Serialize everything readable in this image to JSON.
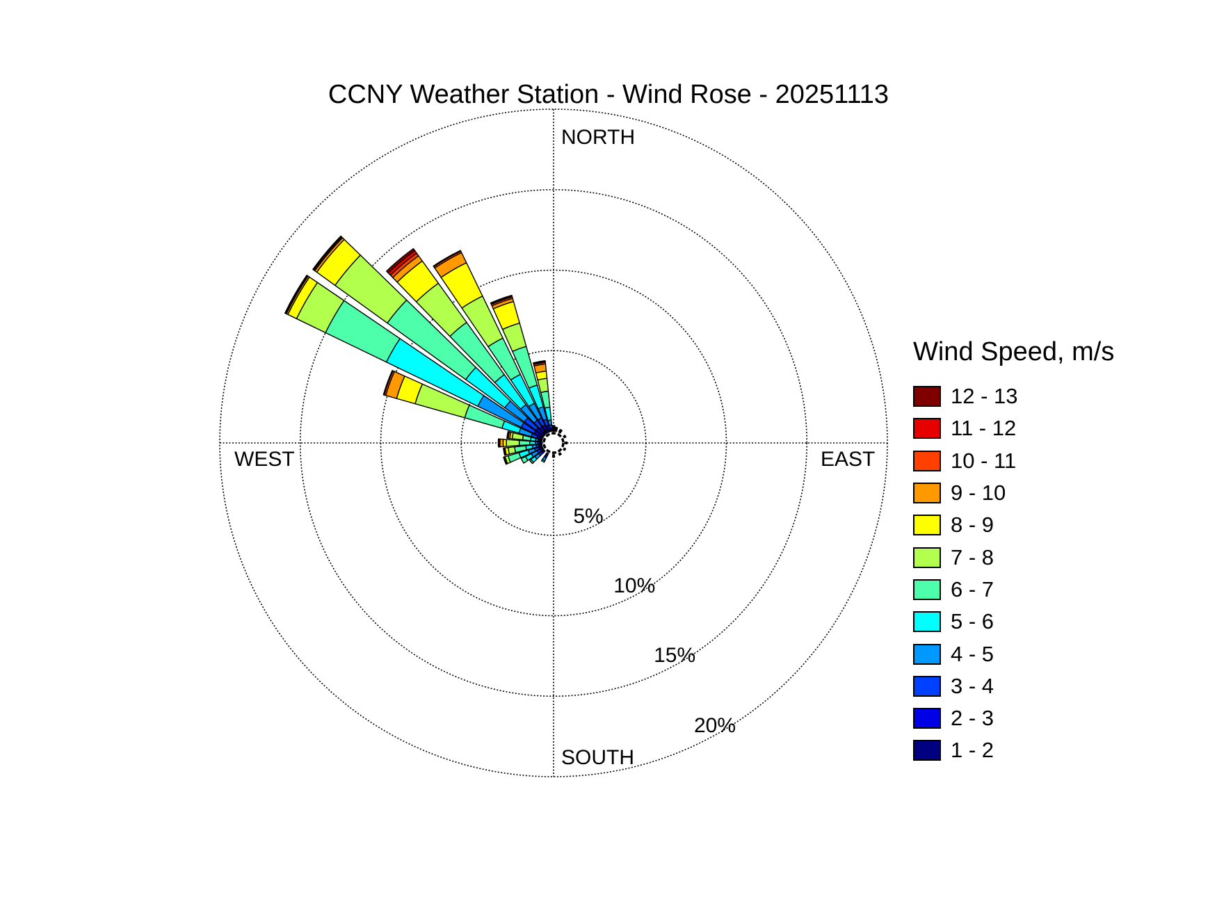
{
  "chart_data": {
    "type": "wind-rose",
    "title": "CCNY Weather Station - Wind Rose - 20251113",
    "direction_labels": {
      "north": "NORTH",
      "south": "SOUTH",
      "west": "WEST",
      "east": "EAST"
    },
    "radial_ticks": [
      5,
      10,
      15,
      20
    ],
    "radial_tick_labels": [
      "5%",
      "10%",
      "15%",
      "20%"
    ],
    "rmax": 20,
    "grid": true,
    "legend_position": "right",
    "legend_title": "Wind Speed, m/s",
    "speed_bins": [
      "12 - 13",
      "11 - 12",
      "10 - 11",
      "9 - 10",
      "8 - 9",
      "7 - 8",
      "6 - 7",
      "5 - 6",
      "4 - 5",
      "3 - 4",
      "2 - 3",
      "1 - 2"
    ],
    "bin_colors": [
      "#800000",
      "#e60000",
      "#ff4000",
      "#ff9900",
      "#ffff00",
      "#b3ff4d",
      "#4dffaa",
      "#00ffff",
      "#0099ff",
      "#0040ff",
      "#0000e6",
      "#000080"
    ],
    "sectors_note": "direction in degrees clockwise from north; cumulative frequency (%) at each speed-bin boundary from 1-2 upward",
    "sectors": [
      {
        "direction": 270,
        "cumulative": [
          0.08,
          0.15,
          0.25,
          0.4,
          0.75,
          1.4,
          2.2,
          2.4,
          2.6,
          2.65,
          2.68,
          2.7
        ]
      },
      {
        "direction": 280,
        "cumulative": [
          0.08,
          0.15,
          0.25,
          0.4,
          0.7,
          1.2,
          1.85,
          2.0,
          2.1,
          2.15,
          2.17,
          2.18
        ]
      },
      {
        "direction": 290,
        "cumulative": [
          0.15,
          0.35,
          0.7,
          1.5,
          2.6,
          5.0,
          8.2,
          9.4,
          10.1,
          10.2,
          10.22,
          10.25
        ]
      },
      {
        "direction": 300,
        "cumulative": [
          0.2,
          0.6,
          1.5,
          4.5,
          10.8,
          15.0,
          17.0,
          17.6,
          17.7,
          17.75,
          17.78,
          17.8
        ]
      },
      {
        "direction": 310,
        "cumulative": [
          0.2,
          0.6,
          1.5,
          3.0,
          6.0,
          12.0,
          16.0,
          17.4,
          17.55,
          17.62,
          17.66,
          17.7
        ]
      },
      {
        "direction": 320,
        "cumulative": [
          0.2,
          0.5,
          1.0,
          2.2,
          4.5,
          8.5,
          11.5,
          13.2,
          13.6,
          13.8,
          14.0,
          14.15
        ]
      },
      {
        "direction": 330,
        "cumulative": [
          0.2,
          0.5,
          1.0,
          2.0,
          4.0,
          6.5,
          9.4,
          11.7,
          12.4,
          12.5,
          12.52,
          12.55
        ]
      },
      {
        "direction": 340,
        "cumulative": [
          0.15,
          0.4,
          0.8,
          1.6,
          3.0,
          5.5,
          7.0,
          8.4,
          8.6,
          8.7,
          8.75,
          8.8
        ]
      },
      {
        "direction": 350,
        "cumulative": [
          0.1,
          0.2,
          0.4,
          0.7,
          1.5,
          2.5,
          3.3,
          3.75,
          4.2,
          4.3,
          4.35,
          4.4
        ]
      },
      {
        "direction": 0,
        "cumulative": [
          0.05,
          0.08,
          0.1,
          0.15,
          0.2,
          0.25,
          0.3,
          0.35,
          0.35,
          0.35,
          0.35,
          0.35
        ]
      },
      {
        "direction": 10,
        "cumulative": [
          0.05,
          0.08,
          0.1,
          0.15,
          0.2,
          0.25,
          0.25,
          0.25,
          0.25,
          0.25,
          0.25,
          0.25
        ]
      },
      {
        "direction": 30,
        "cumulative": [
          0.05,
          0.08,
          0.1,
          0.15,
          0.18,
          0.2,
          0.2,
          0.2,
          0.2,
          0.2,
          0.2,
          0.2
        ]
      },
      {
        "direction": 60,
        "cumulative": [
          0.05,
          0.08,
          0.1,
          0.12,
          0.12,
          0.12,
          0.12,
          0.12,
          0.12,
          0.12,
          0.12,
          0.12
        ]
      },
      {
        "direction": 90,
        "cumulative": [
          0.05,
          0.08,
          0.1,
          0.1,
          0.1,
          0.1,
          0.1,
          0.1,
          0.1,
          0.1,
          0.1,
          0.1
        ]
      },
      {
        "direction": 120,
        "cumulative": [
          0.05,
          0.08,
          0.1,
          0.1,
          0.1,
          0.1,
          0.1,
          0.1,
          0.1,
          0.1,
          0.1,
          0.1
        ]
      },
      {
        "direction": 150,
        "cumulative": [
          0.05,
          0.08,
          0.1,
          0.12,
          0.12,
          0.12,
          0.12,
          0.12,
          0.12,
          0.12,
          0.12,
          0.12
        ]
      },
      {
        "direction": 180,
        "cumulative": [
          0.05,
          0.08,
          0.1,
          0.12,
          0.15,
          0.15,
          0.15,
          0.15,
          0.15,
          0.15,
          0.15,
          0.15
        ]
      },
      {
        "direction": 210,
        "cumulative": [
          0.1,
          0.2,
          0.3,
          0.5,
          0.6,
          0.6,
          0.6,
          0.6,
          0.6,
          0.6,
          0.6,
          0.6
        ]
      },
      {
        "direction": 230,
        "cumulative": [
          0.1,
          0.2,
          0.4,
          0.7,
          1.0,
          1.1,
          1.1,
          1.1,
          1.1,
          1.1,
          1.1,
          1.1
        ]
      },
      {
        "direction": 240,
        "cumulative": [
          0.1,
          0.2,
          0.4,
          0.8,
          1.2,
          1.5,
          1.5,
          1.5,
          1.5,
          1.5,
          1.5,
          1.5
        ]
      },
      {
        "direction": 250,
        "cumulative": [
          0.1,
          0.25,
          0.5,
          0.9,
          1.5,
          2.2,
          2.4,
          2.45,
          2.5,
          2.5,
          2.5,
          2.5
        ]
      },
      {
        "direction": 260,
        "cumulative": [
          0.1,
          0.2,
          0.35,
          0.6,
          1.0,
          1.7,
          2.1,
          2.3,
          2.35,
          2.4,
          2.4,
          2.4
        ]
      }
    ]
  }
}
